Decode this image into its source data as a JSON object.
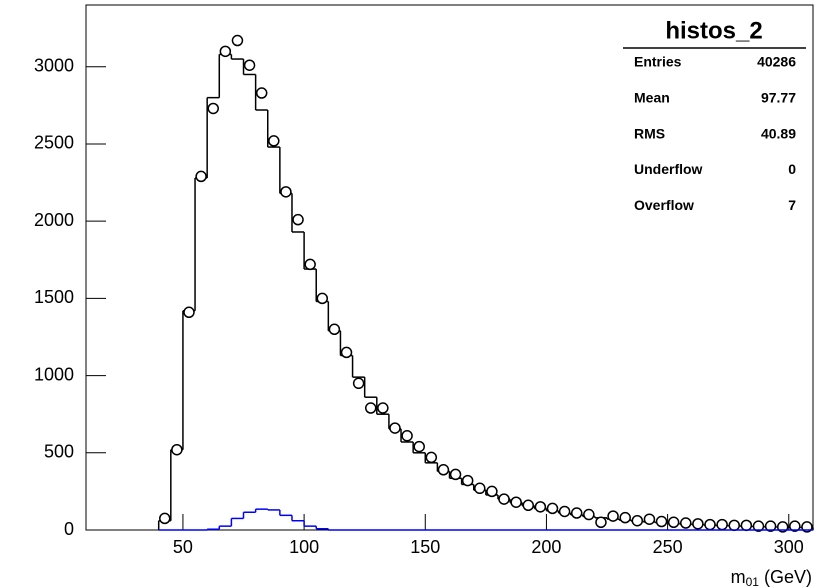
{
  "chart_data": {
    "type": "histogram",
    "bins": [
      40,
      45,
      50,
      55,
      60,
      65,
      70,
      75,
      80,
      85,
      90,
      95,
      100,
      105,
      110,
      115,
      120,
      125,
      130,
      135,
      140,
      145,
      150,
      155,
      160,
      165,
      170,
      175,
      180,
      185,
      190,
      195,
      200,
      205,
      210,
      215,
      220,
      225,
      230,
      235,
      240,
      245,
      250,
      255,
      260,
      265,
      270,
      275,
      280,
      285,
      290,
      295,
      300,
      305,
      310
    ],
    "series": [
      {
        "color": "#000000",
        "style": "step",
        "values": [
          60,
          520,
          1420,
          2280,
          2800,
          3080,
          3050,
          2950,
          2720,
          2480,
          2180,
          1930,
          1690,
          1480,
          1290,
          1130,
          990,
          860,
          750,
          655,
          570,
          500,
          435,
          380,
          335,
          295,
          258,
          227,
          200,
          177,
          157,
          139,
          124,
          110,
          98,
          88,
          79,
          71,
          64,
          57,
          52,
          47,
          42,
          38,
          35,
          32,
          29,
          27,
          24,
          22,
          20,
          19,
          17,
          16
        ]
      },
      {
        "color": "#000000",
        "style": "marker",
        "marker": "circle",
        "values": [
          75,
          520,
          1410,
          2290,
          2730,
          3100,
          3170,
          3010,
          2830,
          2520,
          2190,
          2010,
          1720,
          1500,
          1300,
          1150,
          950,
          790,
          790,
          660,
          610,
          540,
          470,
          390,
          360,
          320,
          270,
          250,
          200,
          180,
          160,
          150,
          140,
          120,
          110,
          100,
          50,
          90,
          80,
          60,
          70,
          55,
          50,
          45,
          40,
          35,
          35,
          30,
          30,
          25,
          25,
          20,
          25,
          20
        ]
      },
      {
        "color": "#0000ff",
        "style": "step",
        "values": [
          0,
          0,
          0,
          0,
          5,
          25,
          75,
          115,
          135,
          130,
          95,
          60,
          25,
          8,
          0,
          0,
          0,
          0,
          0,
          0,
          0,
          0,
          0,
          0,
          0,
          0,
          0,
          0,
          0,
          0,
          0,
          0,
          0,
          0,
          0,
          0,
          0,
          0,
          0,
          0,
          0,
          0,
          0,
          0,
          0,
          0,
          0,
          0,
          0,
          0,
          0,
          0,
          0,
          0
        ]
      }
    ],
    "xlim": [
      10,
      310
    ],
    "ylim": [
      0,
      3400
    ],
    "xticks": [
      50,
      100,
      150,
      200,
      250,
      300
    ],
    "yticks": [
      0,
      500,
      1000,
      1500,
      2000,
      2500,
      3000
    ],
    "xlabel": {
      "base": "m",
      "sub": "01",
      "rest": "(GeV)"
    },
    "stats": {
      "title": "histos_2",
      "rows": [
        [
          "Entries",
          40286
        ],
        [
          "Mean",
          97.77
        ],
        [
          "RMS",
          40.89
        ],
        [
          "Underflow",
          0
        ],
        [
          "Overflow",
          7
        ]
      ]
    }
  }
}
